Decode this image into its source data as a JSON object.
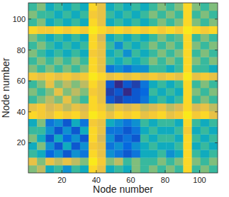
{
  "chart_data": {
    "type": "heatmap",
    "xlabel": "Node number",
    "ylabel": "Node number",
    "x": [
      0.5,
      5.5,
      10.5,
      15.5,
      20.5,
      25.5,
      30.5,
      35.5,
      40.5,
      45.5,
      50.5,
      55.5,
      60.5,
      65.5,
      70.5,
      75.5,
      80.5,
      85.5,
      90.5,
      95.5,
      100.5,
      105.5,
      110.5
    ],
    "y": [
      0.5,
      5.5,
      10.5,
      15.5,
      20.5,
      25.5,
      30.5,
      35.5,
      40.5,
      45.5,
      50.5,
      55.5,
      60.5,
      65.5,
      70.5,
      75.5,
      80.5,
      85.5,
      90.5,
      95.5,
      100.5,
      105.5,
      110.5
    ],
    "z": [
      [
        0.6,
        0.7,
        0.4,
        0.5,
        0.3,
        0.5,
        0.4,
        0.9,
        0.8,
        0.4,
        0.5,
        0.4,
        0.6,
        0.5,
        0.6,
        0.5,
        0.6,
        0.5,
        0.9,
        0.5,
        0.6,
        0.5
      ],
      [
        0.8,
        0.6,
        0.8,
        0.7,
        0.8,
        0.7,
        0.6,
        0.95,
        0.85,
        0.6,
        0.7,
        0.5,
        0.6,
        0.5,
        0.5,
        0.6,
        0.5,
        0.6,
        0.9,
        0.6,
        0.5,
        0.6
      ],
      [
        0.5,
        0.4,
        0.15,
        0.3,
        0.1,
        0.3,
        0.2,
        0.9,
        0.8,
        0.3,
        0.2,
        0.1,
        0.2,
        0.4,
        0.4,
        0.5,
        0.3,
        0.4,
        0.9,
        0.5,
        0.4,
        0.5
      ],
      [
        0.4,
        0.6,
        0.3,
        0.1,
        0.4,
        0.1,
        0.3,
        0.85,
        0.8,
        0.2,
        0.3,
        0.15,
        0.3,
        0.4,
        0.5,
        0.4,
        0.4,
        0.5,
        0.9,
        0.4,
        0.5,
        0.4
      ],
      [
        0.6,
        0.4,
        0.1,
        0.4,
        0.15,
        0.3,
        0.1,
        0.9,
        0.75,
        0.3,
        0.1,
        0.2,
        0.1,
        0.5,
        0.4,
        0.5,
        0.5,
        0.4,
        0.9,
        0.5,
        0.4,
        0.5
      ],
      [
        0.5,
        0.5,
        0.3,
        0.1,
        0.3,
        0.1,
        0.4,
        0.9,
        0.8,
        0.2,
        0.2,
        0.1,
        0.2,
        0.4,
        0.5,
        0.4,
        0.4,
        0.5,
        0.85,
        0.4,
        0.5,
        0.4
      ],
      [
        0.4,
        0.6,
        0.2,
        0.3,
        0.1,
        0.4,
        0.2,
        0.85,
        0.8,
        0.4,
        0.3,
        0.2,
        0.3,
        0.5,
        0.4,
        0.5,
        0.5,
        0.4,
        0.9,
        0.5,
        0.4,
        0.5
      ],
      [
        0.9,
        0.85,
        0.8,
        0.9,
        0.85,
        0.9,
        0.8,
        0.95,
        0.9,
        0.8,
        0.9,
        0.85,
        0.9,
        0.8,
        0.85,
        0.9,
        0.8,
        0.85,
        0.95,
        0.85,
        0.9,
        0.8
      ],
      [
        0.8,
        0.85,
        0.75,
        0.8,
        0.7,
        0.8,
        0.75,
        0.9,
        0.85,
        0.7,
        0.8,
        0.75,
        0.8,
        0.7,
        0.75,
        0.8,
        0.7,
        0.75,
        0.9,
        0.75,
        0.8,
        0.7
      ],
      [
        0.5,
        0.6,
        0.7,
        0.6,
        0.8,
        0.6,
        0.5,
        0.9,
        0.8,
        0.1,
        0.05,
        0.1,
        0.1,
        0.2,
        0.4,
        0.5,
        0.4,
        0.5,
        0.9,
        0.5,
        0.6,
        0.5
      ],
      [
        0.6,
        0.5,
        0.6,
        0.8,
        0.6,
        0.7,
        0.6,
        0.85,
        0.8,
        0.05,
        0.1,
        0.0,
        0.1,
        0.15,
        0.5,
        0.4,
        0.5,
        0.4,
        0.9,
        0.6,
        0.5,
        0.6
      ],
      [
        0.5,
        0.6,
        0.8,
        0.6,
        0.7,
        0.6,
        0.7,
        0.9,
        0.8,
        0.1,
        0.0,
        0.1,
        0.05,
        0.2,
        0.4,
        0.5,
        0.4,
        0.5,
        0.9,
        0.5,
        0.6,
        0.5
      ],
      [
        0.85,
        0.8,
        0.85,
        0.8,
        0.85,
        0.8,
        0.85,
        0.95,
        0.9,
        0.8,
        0.85,
        0.8,
        0.85,
        0.8,
        0.85,
        0.8,
        0.85,
        0.8,
        0.95,
        0.8,
        0.85,
        0.8
      ],
      [
        0.6,
        0.5,
        0.6,
        0.5,
        0.6,
        0.5,
        0.6,
        0.9,
        0.8,
        0.2,
        0.3,
        0.2,
        0.3,
        0.3,
        0.5,
        0.5,
        0.4,
        0.5,
        0.9,
        0.5,
        0.5,
        0.4
      ],
      [
        0.5,
        0.6,
        0.5,
        0.6,
        0.5,
        0.6,
        0.5,
        0.9,
        0.8,
        0.5,
        0.4,
        0.5,
        0.4,
        0.5,
        0.6,
        0.5,
        0.6,
        0.5,
        0.9,
        0.6,
        0.5,
        0.6
      ],
      [
        0.6,
        0.5,
        0.4,
        0.5,
        0.4,
        0.5,
        0.4,
        0.85,
        0.8,
        0.4,
        0.5,
        0.3,
        0.5,
        0.4,
        0.5,
        0.6,
        0.5,
        0.6,
        0.9,
        0.5,
        0.6,
        0.5
      ],
      [
        0.5,
        0.6,
        0.5,
        0.4,
        0.5,
        0.4,
        0.5,
        0.9,
        0.8,
        0.5,
        0.3,
        0.5,
        0.4,
        0.5,
        0.6,
        0.5,
        0.6,
        0.5,
        0.9,
        0.6,
        0.5,
        0.6
      ],
      [
        0.6,
        0.5,
        0.4,
        0.5,
        0.4,
        0.5,
        0.4,
        0.9,
        0.75,
        0.4,
        0.5,
        0.4,
        0.5,
        0.4,
        0.5,
        0.6,
        0.5,
        0.55,
        0.9,
        0.5,
        0.6,
        0.5
      ],
      [
        0.9,
        0.85,
        0.85,
        0.9,
        0.85,
        0.9,
        0.85,
        0.95,
        0.9,
        0.85,
        0.9,
        0.85,
        0.9,
        0.85,
        0.9,
        0.85,
        0.9,
        0.85,
        0.95,
        0.9,
        0.85,
        0.9
      ],
      [
        0.5,
        0.6,
        0.4,
        0.5,
        0.4,
        0.5,
        0.4,
        0.9,
        0.8,
        0.4,
        0.5,
        0.4,
        0.5,
        0.4,
        0.5,
        0.6,
        0.5,
        0.6,
        0.9,
        0.6,
        0.5,
        0.6
      ],
      [
        0.6,
        0.5,
        0.5,
        0.4,
        0.5,
        0.4,
        0.5,
        0.85,
        0.8,
        0.5,
        0.4,
        0.5,
        0.4,
        0.5,
        0.6,
        0.5,
        0.6,
        0.5,
        0.9,
        0.5,
        0.6,
        0.5
      ],
      [
        0.5,
        0.6,
        0.4,
        0.5,
        0.4,
        0.5,
        0.4,
        0.9,
        0.8,
        0.4,
        0.5,
        0.4,
        0.5,
        0.4,
        0.5,
        0.6,
        0.5,
        0.6,
        0.9,
        0.6,
        0.5,
        0.6
      ]
    ],
    "zlim": [
      0,
      1
    ],
    "xlim": [
      0.5,
      110.5
    ],
    "ylim": [
      0.5,
      110.5
    ],
    "xticks": [
      20,
      40,
      60,
      80,
      100
    ],
    "yticks": [
      20,
      40,
      60,
      80,
      100
    ]
  }
}
